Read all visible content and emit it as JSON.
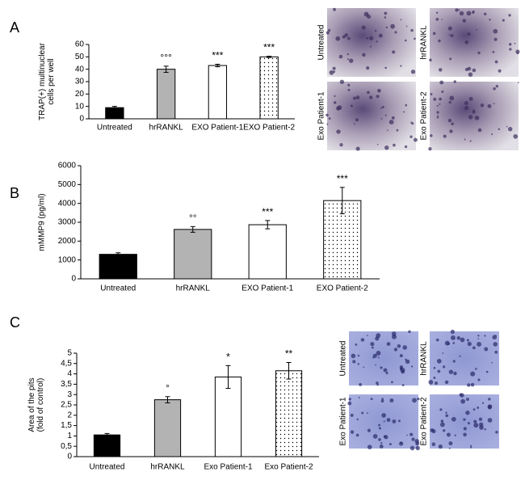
{
  "chart_data": [
    {
      "type": "bar",
      "panel": "A",
      "ylabel": [
        "TRAP(+) multinuclear",
        "cells per well"
      ],
      "categories": [
        "Untreated",
        "hrRANKL",
        "EXO Patient-1",
        "EXO Patient-2"
      ],
      "values": [
        9,
        40,
        43,
        50
      ],
      "errors": [
        1,
        2.5,
        1,
        0.5
      ],
      "annotations": [
        null,
        "°°°",
        "***",
        "***"
      ],
      "colors": [
        "#000000",
        "#b3b3b3",
        "#ffffff",
        "#ffffff"
      ],
      "patterns": [
        null,
        null,
        null,
        "dots"
      ],
      "ylim": [
        0,
        60
      ],
      "yticks": [
        0,
        10,
        20,
        30,
        40,
        50,
        60
      ],
      "micrographs": [
        "Untreated",
        "hrRANKL",
        "Exo Patient-1",
        "Exo Patient-2"
      ]
    },
    {
      "type": "bar",
      "panel": "B",
      "ylabel": [
        "mMMP9 (pg/ml)"
      ],
      "categories": [
        "Untreated",
        "hrRANKL",
        "EXO Patient-1",
        "EXO Patient-2"
      ],
      "values": [
        1300,
        2620,
        2870,
        4150
      ],
      "errors": [
        80,
        150,
        220,
        700
      ],
      "annotations": [
        null,
        "°°",
        "***",
        "***"
      ],
      "colors": [
        "#000000",
        "#b3b3b3",
        "#ffffff",
        "#ffffff"
      ],
      "patterns": [
        null,
        null,
        null,
        "dots"
      ],
      "ylim": [
        0,
        6000
      ],
      "yticks": [
        0,
        1000,
        2000,
        3000,
        4000,
        5000,
        6000
      ]
    },
    {
      "type": "bar",
      "panel": "C",
      "ylabel": [
        "Area of the pits",
        "(fold of control)"
      ],
      "categories": [
        "Untreated",
        "hrRANKL",
        "Exo Patient-1",
        "Exo Patient-2"
      ],
      "values": [
        1.05,
        2.75,
        3.85,
        4.15
      ],
      "errors": [
        0.07,
        0.15,
        0.55,
        0.4
      ],
      "annotations": [
        null,
        "°",
        "*",
        "**"
      ],
      "colors": [
        "#000000",
        "#b3b3b3",
        "#ffffff",
        "#ffffff"
      ],
      "patterns": [
        null,
        null,
        null,
        "dots"
      ],
      "ylim": [
        0,
        5
      ],
      "yticks": [
        0,
        {
          "value": 0.5,
          "label": "0,5"
        },
        1,
        {
          "value": 1.5,
          "label": "1,5"
        },
        2,
        {
          "value": 2.5,
          "label": "2,5"
        },
        3,
        {
          "value": 3.5,
          "label": "3,5"
        },
        4,
        {
          "value": 4.5,
          "label": "4,5"
        },
        5
      ],
      "micrographs": [
        "Untreated",
        "hrRANKL",
        "Exo Patient-1",
        "Exo Patient-2"
      ]
    }
  ]
}
